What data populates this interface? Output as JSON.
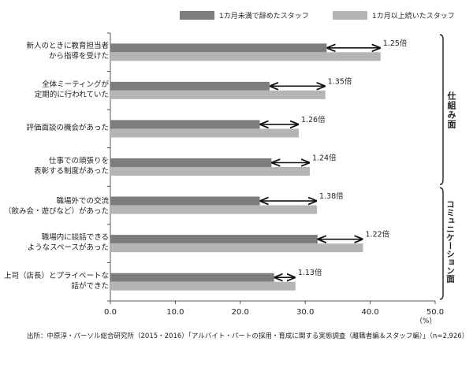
{
  "chart_data": {
    "type": "bar",
    "orientation": "horizontal",
    "categories": [
      "新人のときに教育担当者\nから指導を受けた",
      "全体ミーティングが\n定期的に行われていた",
      "評価面談の機会があった",
      "仕事での頑張りを\n表彰する制度があった",
      "職場外での交流\n（飲み会・遊びなど）があった",
      "職場内に談話できる\nようなスペースがあった",
      "上司（店長）とプライベートな\n話ができた"
    ],
    "series": [
      {
        "name": "1カ月未満で辞めたスタッフ",
        "color": "#7d7d7d",
        "values": [
          33.3,
          24.5,
          23.0,
          24.8,
          23.0,
          31.9,
          25.2
        ]
      },
      {
        "name": "1カ月以上続いたスタッフ",
        "color": "#b5b5b5",
        "values": [
          41.6,
          33.1,
          29.0,
          30.7,
          31.8,
          38.9,
          28.5
        ]
      }
    ],
    "ratios": [
      "1.25倍",
      "1.35倍",
      "1.26倍",
      "1.24倍",
      "1.38倍",
      "1.22倍",
      "1.13倍"
    ],
    "xlim": [
      0,
      50
    ],
    "xticks": [
      "0.0",
      "10.0",
      "20.0",
      "30.0",
      "40.0",
      "50.0"
    ],
    "xunit": "（%）",
    "groups": [
      {
        "label": "仕組み面",
        "from": 0,
        "to": 3
      },
      {
        "label": "コミュニケーション面",
        "from": 4,
        "to": 6
      }
    ],
    "legend_position": "top-right",
    "grid": false
  },
  "source": "出所：中原淳・パーソル総合研究所（2015・2016）「アルバイト・パートの採用・育成に関する実態調査（離職者編＆スタッフ編）」（n=2,926）"
}
